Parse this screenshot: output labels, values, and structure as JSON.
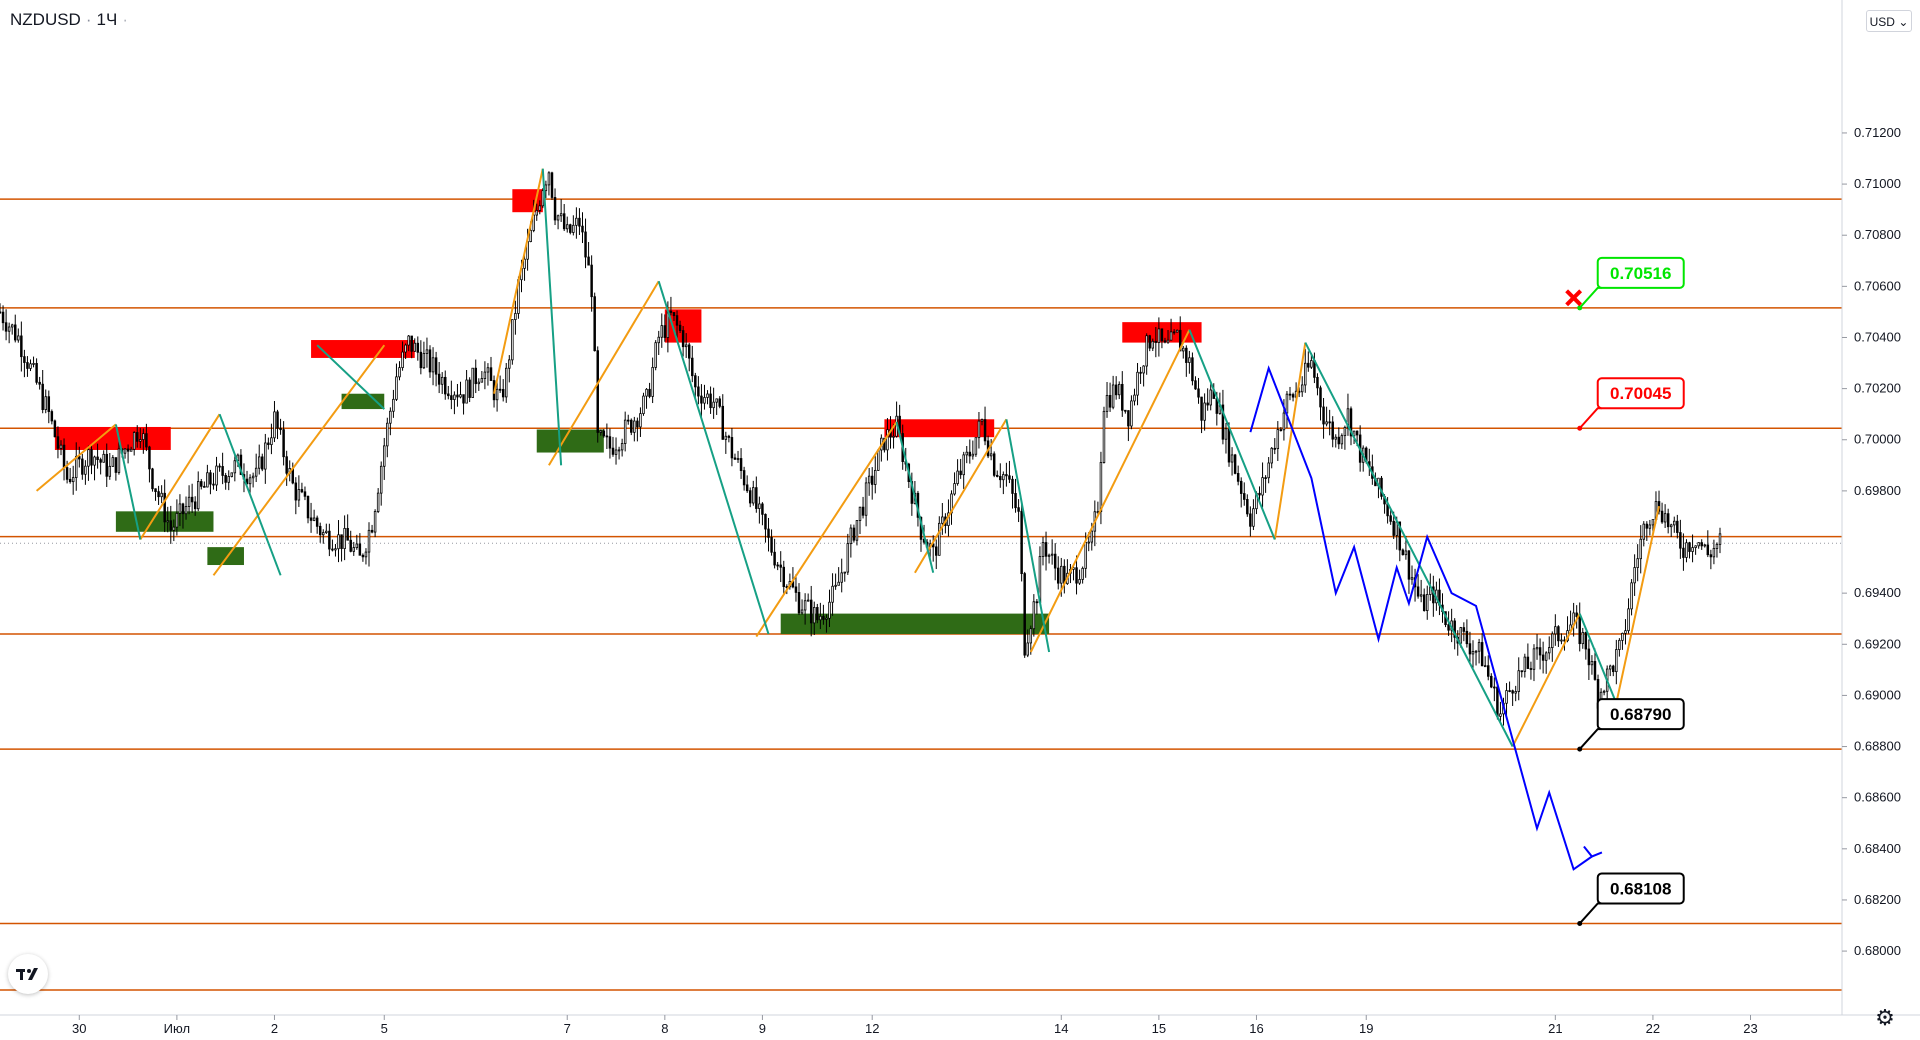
{
  "header": {
    "symbol": "NZDUSD",
    "separator": "·",
    "timeframe": "1Ч",
    "menu_dot": "·"
  },
  "currency_selector": {
    "label": "USD",
    "icon": "chevron-down-icon"
  },
  "footer": {
    "settings_icon": "gear-icon",
    "logo": "tradingview-logo"
  },
  "colors": {
    "level_line": "#d35400",
    "level_label_bg": "#d35400",
    "current_price_bg": "#c8cbd2",
    "supply_zone": "#ff0000",
    "demand_zone": "#2f6b16",
    "wave_up": "#f39c12",
    "wave_down": "#16a085",
    "forecast": "#0000ff",
    "label_green": "#00e600",
    "label_red": "#ff0000",
    "label_black": "#000000"
  },
  "chart_data": {
    "type": "candlestick",
    "symbol": "NZDUSD",
    "timeframe": "1Ч",
    "y_range": [
      0.6775,
      0.7172
    ],
    "x_range": [
      -5,
      297
    ],
    "x_axis_ticks": [
      {
        "label": "30",
        "x": 8
      },
      {
        "label": "Июл",
        "x": 24
      },
      {
        "label": "2",
        "x": 40
      },
      {
        "label": "5",
        "x": 58
      },
      {
        "label": "7",
        "x": 88
      },
      {
        "label": "8",
        "x": 104
      },
      {
        "label": "9",
        "x": 120
      },
      {
        "label": "12",
        "x": 138
      },
      {
        "label": "14",
        "x": 169
      },
      {
        "label": "15",
        "x": 185
      },
      {
        "label": "16",
        "x": 201
      },
      {
        "label": "19",
        "x": 219
      },
      {
        "label": "21",
        "x": 250
      },
      {
        "label": "22",
        "x": 266
      },
      {
        "label": "23",
        "x": 282
      }
    ],
    "y_axis_ticks": [
      "0.71200",
      "0.71000",
      "0.70800",
      "0.70600",
      "0.70400",
      "0.70200",
      "0.70000",
      "0.69800",
      "0.69400",
      "0.69200",
      "0.69000",
      "0.68800",
      "0.68600",
      "0.68400",
      "0.68200",
      "0.68000"
    ],
    "levels": [
      "0.70941",
      "0.70516",
      "0.70045",
      "0.69621",
      "0.69240",
      "0.68790",
      "0.68108",
      "0.67848"
    ],
    "current_price": "0.69595",
    "price_path": [
      [
        -5,
        0.705
      ],
      [
        -2,
        0.704
      ],
      [
        3,
        0.701
      ],
      [
        6,
        0.6985
      ],
      [
        10,
        0.6995
      ],
      [
        13,
        0.6988
      ],
      [
        18,
        0.7005
      ],
      [
        20,
        0.6985
      ],
      [
        23,
        0.6965
      ],
      [
        26,
        0.6975
      ],
      [
        30,
        0.6985
      ],
      [
        34,
        0.699
      ],
      [
        37,
        0.6985
      ],
      [
        40,
        0.7008
      ],
      [
        43,
        0.6982
      ],
      [
        46,
        0.697
      ],
      [
        48,
        0.6963
      ],
      [
        52,
        0.696
      ],
      [
        54,
        0.6953
      ],
      [
        56,
        0.6968
      ],
      [
        58,
        0.6998
      ],
      [
        60,
        0.7025
      ],
      [
        62,
        0.7038
      ],
      [
        66,
        0.7028
      ],
      [
        68,
        0.7022
      ],
      [
        71,
        0.7018
      ],
      [
        74,
        0.7028
      ],
      [
        77,
        0.7015
      ],
      [
        78,
        0.7025
      ],
      [
        80,
        0.706
      ],
      [
        82,
        0.708
      ],
      [
        84,
        0.71
      ],
      [
        85,
        0.7106
      ],
      [
        86,
        0.709
      ],
      [
        88,
        0.708
      ],
      [
        90,
        0.7085
      ],
      [
        92,
        0.706
      ],
      [
        93,
        0.7
      ],
      [
        95,
        0.6997
      ],
      [
        98,
        0.7005
      ],
      [
        101,
        0.7015
      ],
      [
        103,
        0.704
      ],
      [
        105,
        0.7048
      ],
      [
        107,
        0.704
      ],
      [
        109,
        0.702
      ],
      [
        112,
        0.7015
      ],
      [
        115,
        0.6995
      ],
      [
        118,
        0.698
      ],
      [
        121,
        0.696
      ],
      [
        124,
        0.6945
      ],
      [
        126,
        0.6937
      ],
      [
        129,
        0.693
      ],
      [
        132,
        0.694
      ],
      [
        135,
        0.6965
      ],
      [
        138,
        0.6985
      ],
      [
        140,
        0.7
      ],
      [
        142,
        0.7005
      ],
      [
        144,
        0.6985
      ],
      [
        146,
        0.6965
      ],
      [
        148,
        0.6955
      ],
      [
        150,
        0.697
      ],
      [
        152,
        0.6985
      ],
      [
        154,
        0.6995
      ],
      [
        156,
        0.7007
      ],
      [
        158,
        0.699
      ],
      [
        160,
        0.6985
      ],
      [
        162,
        0.697
      ],
      [
        163,
        0.692
      ],
      [
        165,
        0.694
      ],
      [
        166,
        0.696
      ],
      [
        168,
        0.695
      ],
      [
        170,
        0.6945
      ],
      [
        172,
        0.695
      ],
      [
        174,
        0.696
      ],
      [
        175,
        0.6975
      ],
      [
        176,
        0.7015
      ],
      [
        178,
        0.702
      ],
      [
        180,
        0.701
      ],
      [
        182,
        0.703
      ],
      [
        184,
        0.7042
      ],
      [
        186,
        0.7035
      ],
      [
        188,
        0.704
      ],
      [
        190,
        0.703
      ],
      [
        192,
        0.701
      ],
      [
        194,
        0.702
      ],
      [
        196,
        0.7
      ],
      [
        198,
        0.6985
      ],
      [
        200,
        0.697
      ],
      [
        202,
        0.6982
      ],
      [
        204,
        0.7
      ],
      [
        206,
        0.7015
      ],
      [
        208,
        0.702
      ],
      [
        210,
        0.703
      ],
      [
        212,
        0.701
      ],
      [
        214,
        0.7
      ],
      [
        216,
        0.701
      ],
      [
        218,
        0.6995
      ],
      [
        220,
        0.6985
      ],
      [
        222,
        0.6975
      ],
      [
        224,
        0.6965
      ],
      [
        226,
        0.695
      ],
      [
        228,
        0.6935
      ],
      [
        230,
        0.694
      ],
      [
        232,
        0.693
      ],
      [
        234,
        0.6925
      ],
      [
        236,
        0.692
      ],
      [
        238,
        0.6915
      ],
      [
        240,
        0.69
      ],
      [
        241,
        0.6893
      ],
      [
        243,
        0.6905
      ],
      [
        245,
        0.691
      ],
      [
        247,
        0.6915
      ],
      [
        249,
        0.692
      ],
      [
        251,
        0.6925
      ],
      [
        253,
        0.6928
      ],
      [
        255,
        0.692
      ],
      [
        257,
        0.69
      ],
      [
        259,
        0.691
      ],
      [
        261,
        0.692
      ],
      [
        263,
        0.695
      ],
      [
        265,
        0.697
      ],
      [
        267,
        0.6975
      ],
      [
        269,
        0.6965
      ],
      [
        271,
        0.6958
      ],
      [
        273,
        0.6962
      ],
      [
        275,
        0.6955
      ],
      [
        277,
        0.696
      ]
    ],
    "supply_zones": [
      [
        4,
        23,
        0.6996,
        0.7005
      ],
      [
        46,
        63,
        0.7032,
        0.7039
      ],
      [
        79,
        84,
        0.7089,
        0.7098
      ],
      [
        104,
        110,
        0.7038,
        0.7051
      ],
      [
        140,
        158,
        0.7001,
        0.7008
      ],
      [
        179,
        192,
        0.7038,
        0.7046
      ]
    ],
    "demand_zones": [
      [
        14,
        30,
        0.6964,
        0.6972
      ],
      [
        51,
        58,
        0.7012,
        0.7018
      ],
      [
        29,
        35,
        0.6951,
        0.6958
      ],
      [
        83,
        94,
        0.6995,
        0.7004
      ],
      [
        123,
        167,
        0.6924,
        0.6932
      ]
    ],
    "wave_up_path": [
      [
        1,
        0.698
      ],
      [
        14,
        0.7006
      ],
      [
        [
          18,
          0.6961
        ],
        [
          31,
          0.701
        ]
      ],
      [
        [
          30,
          0.6947
        ],
        [
          58,
          0.7037
        ]
      ],
      [
        [
          76,
          0.7018
        ],
        [
          84,
          0.7106
        ]
      ],
      [
        [
          85,
          0.699
        ],
        [
          103,
          0.7062
        ]
      ],
      [
        [
          119,
          0.6923
        ],
        [
          142,
          0.7007
        ]
      ],
      [
        [
          145,
          0.6948
        ],
        [
          160,
          0.7008
        ]
      ],
      [
        [
          164,
          0.6917
        ],
        [
          190,
          0.7043
        ]
      ],
      [
        [
          204,
          0.6961
        ],
        [
          209,
          0.7038
        ]
      ],
      [
        [
          243,
          0.688
        ],
        [
          254,
          0.6932
        ]
      ],
      [
        [
          260,
          0.6897
        ],
        [
          267,
          0.6974
        ]
      ]
    ],
    "wave_down_path": [
      [
        [
          14,
          0.7006
        ],
        [
          18,
          0.6961
        ]
      ],
      [
        [
          31,
          0.701
        ],
        [
          41,
          0.6947
        ]
      ],
      [
        [
          47,
          0.7037
        ],
        [
          58,
          0.7012
        ]
      ],
      [
        [
          84,
          0.7106
        ],
        [
          87,
          0.699
        ]
      ],
      [
        [
          103,
          0.7062
        ],
        [
          121,
          0.6924
        ]
      ],
      [
        [
          142,
          0.7007
        ],
        [
          148,
          0.6948
        ]
      ],
      [
        [
          160,
          0.7008
        ],
        [
          167,
          0.6917
        ]
      ],
      [
        [
          190,
          0.7043
        ],
        [
          204,
          0.6961
        ]
      ],
      [
        [
          209,
          0.7038
        ],
        [
          243,
          0.688
        ]
      ],
      [
        [
          254,
          0.6932
        ],
        [
          260,
          0.6897
        ]
      ]
    ],
    "forecast_path": [
      [
        200,
        0.7003
      ],
      [
        203,
        0.7028
      ],
      [
        210,
        0.6985
      ],
      [
        214,
        0.694
      ],
      [
        217,
        0.6958
      ],
      [
        221,
        0.6922
      ],
      [
        224,
        0.695
      ],
      [
        226,
        0.6936
      ],
      [
        229,
        0.6962
      ],
      [
        233,
        0.694
      ],
      [
        237,
        0.6935
      ],
      [
        247,
        0.6848
      ],
      [
        249,
        0.6862
      ],
      [
        253,
        0.6832
      ],
      [
        256,
        0.6837
      ]
    ],
    "annotations": [
      {
        "text": "0.70516",
        "color": "green",
        "x": 254,
        "price": 0.70516
      },
      {
        "text": "0.70045",
        "color": "red",
        "x": 254,
        "price": 0.70045
      },
      {
        "text": "0.68790",
        "color": "black",
        "x": 254,
        "price": 0.6879
      },
      {
        "text": "0.68108",
        "color": "black",
        "x": 254,
        "price": 0.68108
      }
    ],
    "cancel_marker": {
      "x": 253,
      "price": 0.70516
    }
  }
}
